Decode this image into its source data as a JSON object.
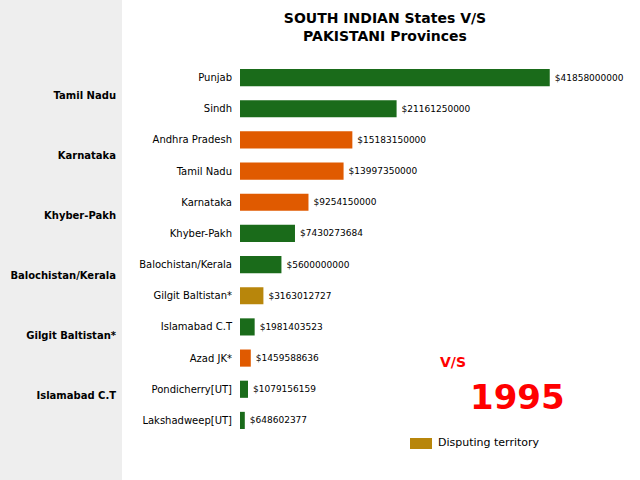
{
  "chart_data": {
    "type": "bar",
    "orientation": "horizontal",
    "title": "SOUTH INDIAN States V/S",
    "subtitle": "PAKISTANI Provinces",
    "categories": [
      "Punjab",
      "Sindh",
      "Andhra Pradesh",
      "Tamil Nadu",
      "Karnataka",
      "Khyber-Pakh",
      "Balochistan/Kerala",
      "Gilgit Baltistan*",
      "Islamabad C.T",
      "Azad JK*",
      "Pondicherry[UT]",
      "Lakshadweep[UT]"
    ],
    "values": [
      41858000000,
      21161250000,
      15183150000,
      13997350000,
      9254150000,
      7430273684,
      5600000000,
      3163012727,
      1981403523,
      1459588636,
      1079156159,
      648602377
    ],
    "value_labels": [
      "$41858000000",
      "$21161250000",
      "$15183150000",
      "$13997350000",
      "$9254150000",
      "$7430273684",
      "$5600000000",
      "$3163012727",
      "$1981403523",
      "$1459588636",
      "$1079156159",
      "$648602377"
    ],
    "colors": [
      "#1a6b1a",
      "#1a6b1a",
      "#e05a00",
      "#e05a00",
      "#e05a00",
      "#1a6b1a",
      "#1a6b1a",
      "#b8860b",
      "#1a6b1a",
      "#e05a00",
      "#1a6b1a",
      "#1a6b1a"
    ],
    "data_labels": true,
    "tick_labels": "y",
    "grid": false,
    "xlim": [
      0,
      50000000000
    ],
    "annotations": [
      "1995",
      "V/S",
      {
        "text": "Disputing territory",
        "color": "#b8860b"
      },
      "Tamil Nadu",
      "Karnataka",
      "Khyber-Pakh",
      "Balochistan/Kerala",
      "Gilgit Baltistan*",
      "Islamabad C.T"
    ]
  }
}
